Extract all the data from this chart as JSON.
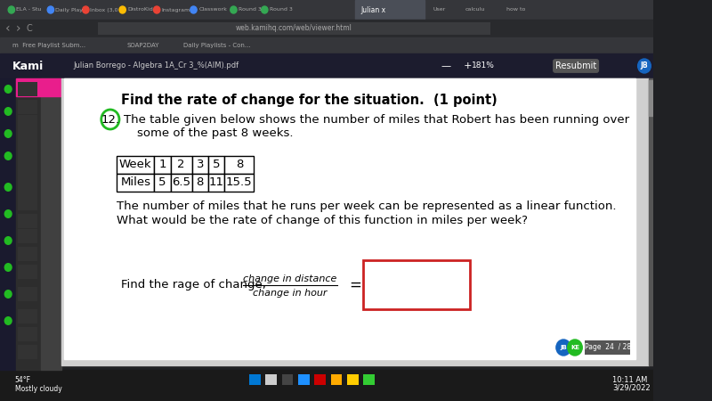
{
  "bg_color": "#ffffff",
  "browser_bg": "#202124",
  "tab_bar_bg": "#35363a",
  "active_tab_color": "#4a4e57",
  "kami_sidebar_bg": "#2d2d2d",
  "kami_sidebar2_bg": "#3a3a3a",
  "pink_top": "#e91e8c",
  "toolbar_bg": "#1a1a2e",
  "header_bold": "Find the rate of change for the situation.  (1 point)",
  "question_number": "12.",
  "table_headers": [
    "Week",
    "1",
    "2",
    "3",
    "5",
    "8"
  ],
  "table_values": [
    "Miles",
    "5",
    "6.5",
    "8",
    "11",
    "15.5"
  ],
  "paragraph1": "The number of miles that he runs per week can be represented as a linear function.",
  "paragraph2": "What would be the rate of change of this function in miles per week?",
  "find_text": "Find the rage of change,",
  "fraction_numerator": "change in distance",
  "fraction_denominator": "change in hour",
  "equals": "=",
  "circle_color": "#22bb22",
  "answer_box_color": "#cc2222",
  "content_bg": "#f0f0f0",
  "taskbar_bg": "#1a1a1a",
  "url_text": "web.kamihq.com/web/viewer.html",
  "kami_label": "Kami",
  "page_label": "Page  24  / 28",
  "time_text": "10:11 AM",
  "date_text": "3/29/2022",
  "weather_text": "54°F\nMostly cloudy",
  "tab_text": "Julian x",
  "zoom_text": "181%",
  "file_text": "Julian Borrego - Algebra 1A_Cr 3_%(AIM).pdf",
  "resubmit_text": "Resubmit"
}
